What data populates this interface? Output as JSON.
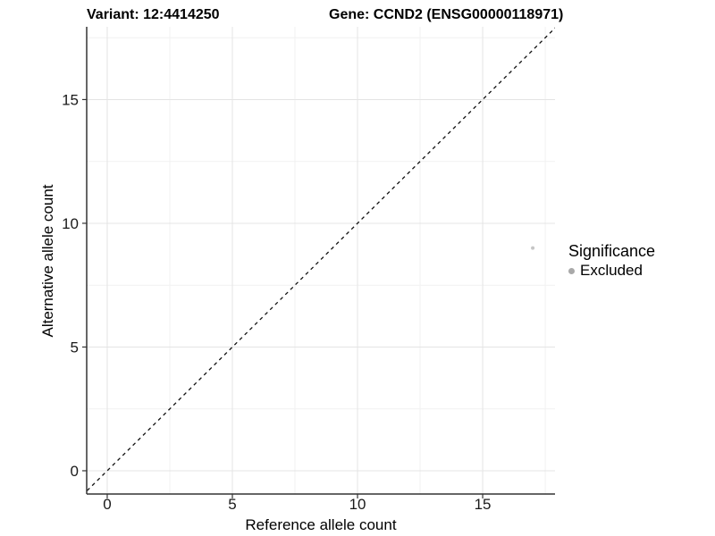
{
  "header": {
    "variant_title": "Variant: 12:4414250",
    "gene_title": "Gene: CCND2 (ENSG00000118971)"
  },
  "chart_data": {
    "type": "scatter",
    "title": "",
    "xlabel": "Reference allele count",
    "ylabel": "Alternative allele count",
    "xlim": [
      -0.82,
      17.89
    ],
    "ylim": [
      -0.94,
      17.94
    ],
    "x_major_ticks": [
      0,
      5,
      10,
      15
    ],
    "y_major_ticks": [
      0,
      5,
      10,
      15
    ],
    "x_minor_ticks": [
      2.5,
      7.5,
      12.5,
      17.5
    ],
    "y_minor_ticks": [
      2.5,
      7.5,
      12.5,
      17.5
    ],
    "grid": true,
    "points": [
      {
        "x": 17,
        "y": 9,
        "significance": "Excluded"
      }
    ],
    "identity_line": {
      "slope": 1,
      "intercept": 0,
      "style": "dashed"
    },
    "legend": {
      "title": "Significance",
      "position": "right",
      "entries": [
        {
          "label": "Excluded",
          "color": "#a9a9a9"
        }
      ]
    },
    "colors": {
      "point": "#c6c6c6",
      "grid_major": "#e4e4e4",
      "grid_minor": "#f1f1f1",
      "axis_line": "#333333",
      "tick_mark": "#333333",
      "tick_label": "#1a1a1a",
      "identity_line": "#111111"
    }
  }
}
